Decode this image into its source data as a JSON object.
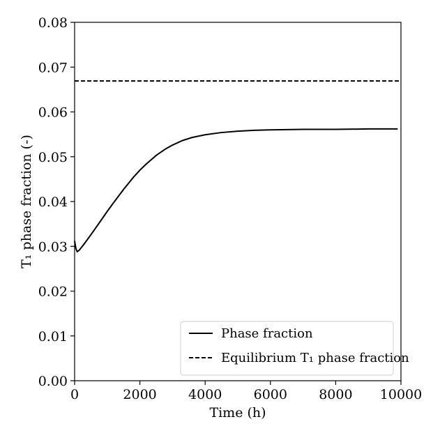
{
  "chart_data": {
    "type": "line",
    "xlabel": "Time (h)",
    "ylabel": "T₁ phase fraction (-)",
    "xlim": [
      0,
      10000
    ],
    "ylim": [
      0.0,
      0.08
    ],
    "x_ticks": [
      "0",
      "2000",
      "4000",
      "6000",
      "8000",
      "10000"
    ],
    "y_ticks": [
      "0.00",
      "0.01",
      "0.02",
      "0.03",
      "0.04",
      "0.05",
      "0.06",
      "0.07",
      "0.08"
    ],
    "grid": false,
    "legend_position": "bottom-right",
    "series": [
      {
        "name": "Phase fraction",
        "style": "solid",
        "color": "#000000",
        "x": [
          0,
          40,
          80,
          150,
          300,
          500,
          800,
          1000,
          1200,
          1500,
          1800,
          2000,
          2200,
          2500,
          2800,
          3000,
          3300,
          3600,
          4000,
          4500,
          5000,
          5500,
          6000,
          7000,
          8000,
          9000,
          9900
        ],
        "y": [
          0.0312,
          0.0295,
          0.0288,
          0.0292,
          0.0306,
          0.0326,
          0.0357,
          0.0378,
          0.0398,
          0.0427,
          0.0454,
          0.047,
          0.0484,
          0.0503,
          0.0518,
          0.0526,
          0.0536,
          0.0543,
          0.0549,
          0.0554,
          0.0557,
          0.0559,
          0.056,
          0.0561,
          0.0561,
          0.0562,
          0.0562
        ]
      },
      {
        "name": "Equilibrium T₁ phase fraction",
        "style": "dashed",
        "color": "#000000",
        "x": [
          0,
          10000
        ],
        "y": [
          0.0669,
          0.0669
        ]
      }
    ]
  }
}
